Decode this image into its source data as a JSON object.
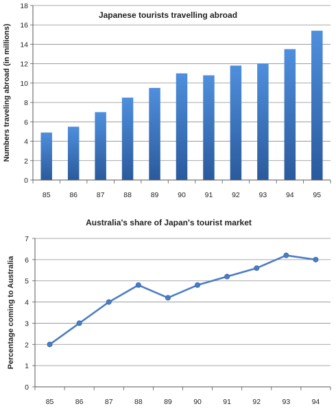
{
  "chart_data": [
    {
      "type": "bar",
      "title": "Japanese tourists travelling abroad",
      "xlabel": "",
      "ylabel": "Numbers traveling abroad (in millions)",
      "categories": [
        "85",
        "86",
        "87",
        "88",
        "89",
        "90",
        "91",
        "92",
        "93",
        "94",
        "95"
      ],
      "values": [
        4.9,
        5.5,
        7.0,
        8.5,
        9.5,
        11.0,
        10.8,
        11.8,
        12.0,
        13.5,
        15.4
      ],
      "ylim": [
        0,
        18
      ],
      "yticks": [
        "0",
        "2",
        "4",
        "6",
        "8",
        "10",
        "12",
        "14",
        "16",
        "18"
      ],
      "grid": true,
      "legend": "none",
      "colors": {
        "bar_top": "#4f8fdd",
        "bar_bottom": "#2a5a9c",
        "grid": "#8c8c8c"
      }
    },
    {
      "type": "line",
      "title": "Australia's share of Japan's tourist market",
      "xlabel": "",
      "ylabel": "Percentage coming to Australia",
      "categories": [
        "85",
        "86",
        "87",
        "88",
        "89",
        "90",
        "91",
        "92",
        "93",
        "94"
      ],
      "values": [
        2.0,
        3.0,
        4.0,
        4.8,
        4.2,
        4.8,
        5.2,
        5.6,
        6.2,
        6.0
      ],
      "ylim": [
        0,
        7
      ],
      "yticks": [
        "0",
        "1",
        "2",
        "3",
        "4",
        "5",
        "6",
        "7"
      ],
      "grid": true,
      "legend": "none",
      "colors": {
        "line": "#4a7cc4",
        "marker": "#4a7cc4",
        "grid": "#8c8c8c"
      }
    }
  ]
}
